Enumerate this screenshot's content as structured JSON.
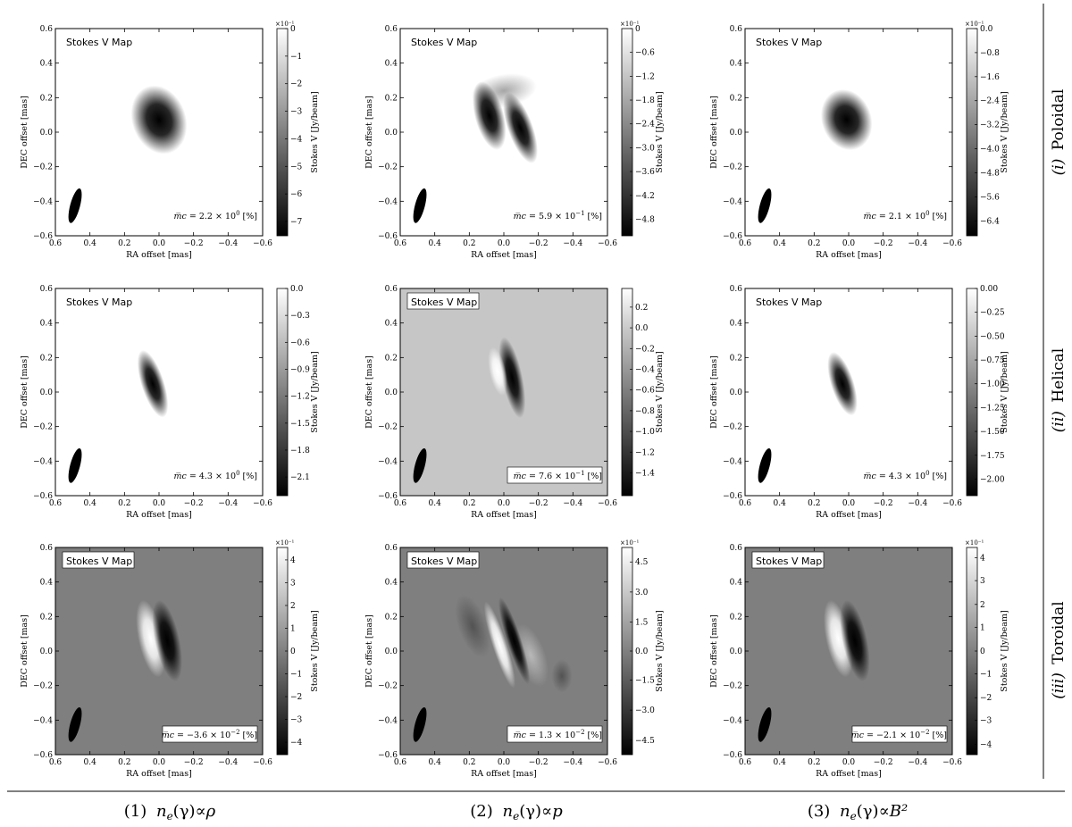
{
  "panel_title": "Stokes V Map",
  "x_axis_label": "RA offset [mas]",
  "y_axis_label": "DEC offset [mas]",
  "colorbar_label": "Stokes V [Jy/beam]",
  "x_ticks": [
    "0.6",
    "0.4",
    "0.2",
    "0.0",
    "−0.2",
    "−0.4",
    "−0.6"
  ],
  "y_ticks": [
    "0.6",
    "0.4",
    "0.2",
    "0.0",
    "−0.2",
    "−0.4",
    "−0.6"
  ],
  "mc_symbol": "m̅c =",
  "mc_unit": "[%]",
  "row_labels": [
    {
      "roman": "(i)",
      "name": "Poloidal"
    },
    {
      "roman": "(ii)",
      "name": "Helical"
    },
    {
      "roman": "(iii)",
      "name": "Toroidal"
    }
  ],
  "column_labels": [
    {
      "num": "(1)",
      "rel": "∝ρ"
    },
    {
      "num": "(2)",
      "rel": "∝p"
    },
    {
      "num": "(3)",
      "rel": "∝B²"
    }
  ],
  "column_prefix": "n",
  "column_sub": "e",
  "column_mid": "(γ)",
  "panels": [
    {
      "row": 0,
      "col": 0,
      "bg": "#ffffff",
      "mc": "2.2 × 10",
      "mc_exp": "0",
      "exp": "×10⁻¹",
      "cbar_ticks": [
        "0",
        "−1",
        "−2",
        "−3",
        "−4",
        "−5",
        "−6",
        "−7"
      ],
      "cbar_pos": [
        0.0,
        0.133,
        0.266,
        0.399,
        0.532,
        0.665,
        0.798,
        0.931
      ],
      "cbar_type": "neg"
    },
    {
      "row": 0,
      "col": 1,
      "bg": "#ffffff",
      "mc": "5.9 × 10",
      "mc_exp": "−1",
      "exp": "×10⁻¹",
      "cbar_ticks": [
        "0",
        "−0.6",
        "−1.2",
        "−1.8",
        "−2.4",
        "−3.0",
        "−3.6",
        "−4.2",
        "−4.8"
      ],
      "cbar_pos": [
        0.0,
        0.115,
        0.23,
        0.345,
        0.46,
        0.575,
        0.69,
        0.805,
        0.92
      ],
      "cbar_type": "neg"
    },
    {
      "row": 0,
      "col": 2,
      "bg": "#ffffff",
      "mc": "2.1 × 10",
      "mc_exp": "0",
      "exp": "×10⁻¹",
      "cbar_ticks": [
        "0.0",
        "−0.8",
        "−1.6",
        "−2.4",
        "−3.2",
        "−4.0",
        "−4.8",
        "−5.6",
        "−6.4"
      ],
      "cbar_pos": [
        0.0,
        0.116,
        0.232,
        0.348,
        0.464,
        0.58,
        0.696,
        0.812,
        0.928
      ],
      "cbar_type": "neg"
    },
    {
      "row": 1,
      "col": 0,
      "bg": "#ffffff",
      "mc": "4.3 × 10",
      "mc_exp": "0",
      "exp": "",
      "cbar_ticks": [
        "0.0",
        "−0.3",
        "−0.6",
        "−0.9",
        "−1.2",
        "−1.5",
        "−1.8",
        "−2.1"
      ],
      "cbar_pos": [
        0.0,
        0.13,
        0.26,
        0.39,
        0.52,
        0.65,
        0.78,
        0.91
      ],
      "cbar_type": "neg"
    },
    {
      "row": 1,
      "col": 1,
      "bg": "#c6c6c6",
      "mc": "7.6 × 10",
      "mc_exp": "−1",
      "exp": "",
      "cbar_ticks": [
        "0.2",
        "0.0",
        "−0.2",
        "−0.4",
        "−0.6",
        "−0.8",
        "−1.0",
        "−1.2",
        "−1.4"
      ],
      "cbar_pos": [
        0.09,
        0.19,
        0.29,
        0.39,
        0.49,
        0.59,
        0.69,
        0.79,
        0.89
      ],
      "cbar_type": "mixed"
    },
    {
      "row": 1,
      "col": 2,
      "bg": "#ffffff",
      "mc": "4.3 × 10",
      "mc_exp": "0",
      "exp": "",
      "cbar_ticks": [
        "0.00",
        "−0.25",
        "−0.50",
        "−0.75",
        "−1.00",
        "−1.25",
        "−1.50",
        "−1.75",
        "−2.00"
      ],
      "cbar_pos": [
        0.0,
        0.115,
        0.23,
        0.345,
        0.46,
        0.575,
        0.69,
        0.805,
        0.92
      ],
      "cbar_type": "neg"
    },
    {
      "row": 2,
      "col": 0,
      "bg": "#7f7f7f",
      "mc": "−3.6 × 10",
      "mc_exp": "−2",
      "exp": "×10⁻¹",
      "cbar_ticks": [
        "4",
        "3",
        "2",
        "1",
        "0",
        "−1",
        "−2",
        "−3",
        "−4"
      ],
      "cbar_pos": [
        0.06,
        0.17,
        0.28,
        0.39,
        0.5,
        0.61,
        0.72,
        0.83,
        0.94
      ],
      "cbar_type": "div"
    },
    {
      "row": 2,
      "col": 1,
      "bg": "#7f7f7f",
      "mc": "1.3 × 10",
      "mc_exp": "−2",
      "exp": "×10⁻¹",
      "cbar_ticks": [
        "4.5",
        "3.0",
        "1.5",
        "0.0",
        "−1.5",
        "−3.0",
        "−4.5"
      ],
      "cbar_pos": [
        0.07,
        0.215,
        0.36,
        0.5,
        0.64,
        0.785,
        0.93
      ],
      "cbar_type": "div"
    },
    {
      "row": 2,
      "col": 2,
      "bg": "#7f7f7f",
      "mc": "−2.1 × 10",
      "mc_exp": "−2",
      "exp": "×10⁻¹",
      "cbar_ticks": [
        "4",
        "3",
        "2",
        "1",
        "0",
        "−1",
        "−2",
        "−3",
        "−4"
      ],
      "cbar_pos": [
        0.05,
        0.16,
        0.275,
        0.385,
        0.5,
        0.61,
        0.725,
        0.835,
        0.95
      ],
      "cbar_type": "div"
    }
  ]
}
